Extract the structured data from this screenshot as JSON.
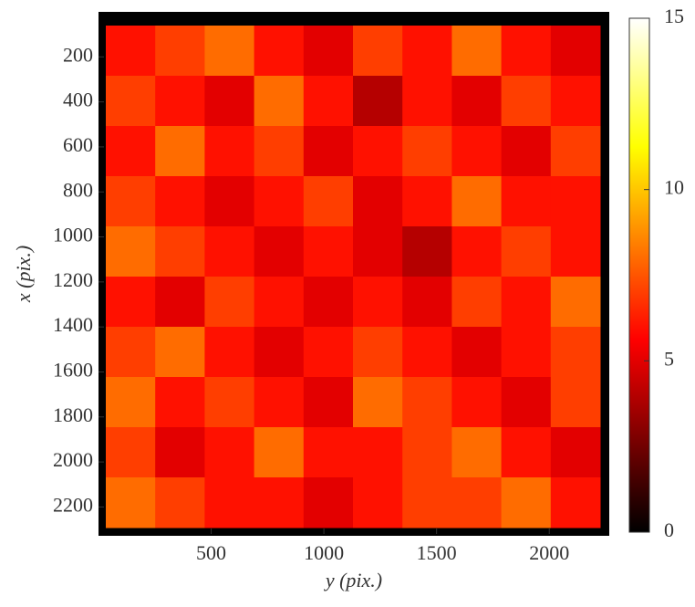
{
  "chart_data": {
    "type": "heatmap",
    "xlabel": "y (pix.)",
    "ylabel": "x (pix.)",
    "xlim": [
      0,
      2250
    ],
    "xticks": [
      500,
      1000,
      1500,
      2000
    ],
    "ylim": [
      0,
      2320
    ],
    "yticks": [
      200,
      400,
      600,
      800,
      1000,
      1200,
      1400,
      1600,
      1800,
      2000,
      2200
    ],
    "yreversed": true,
    "colormap": "hot",
    "clim": [
      0,
      15
    ],
    "cticks": [
      0,
      5,
      10,
      15
    ],
    "z": [
      [
        6,
        7,
        8,
        6,
        5,
        7,
        6,
        8,
        6,
        5
      ],
      [
        7,
        6,
        5,
        8,
        6,
        4,
        6,
        5,
        7,
        6
      ],
      [
        6,
        8,
        6,
        7,
        5,
        6,
        7,
        6,
        5,
        7
      ],
      [
        7,
        6,
        5,
        6,
        7,
        5,
        6,
        8,
        6,
        6
      ],
      [
        8,
        7,
        6,
        5,
        6,
        5,
        4,
        6,
        7,
        6
      ],
      [
        6,
        5,
        7,
        6,
        5,
        6,
        5,
        7,
        6,
        8
      ],
      [
        7,
        8,
        6,
        5,
        6,
        7,
        6,
        5,
        6,
        7
      ],
      [
        8,
        6,
        7,
        6,
        5,
        8,
        7,
        6,
        5,
        7
      ],
      [
        7,
        5,
        6,
        8,
        6,
        6,
        7,
        8,
        6,
        5
      ],
      [
        8,
        7,
        6,
        6,
        5,
        6,
        7,
        7,
        8,
        6
      ]
    ]
  }
}
